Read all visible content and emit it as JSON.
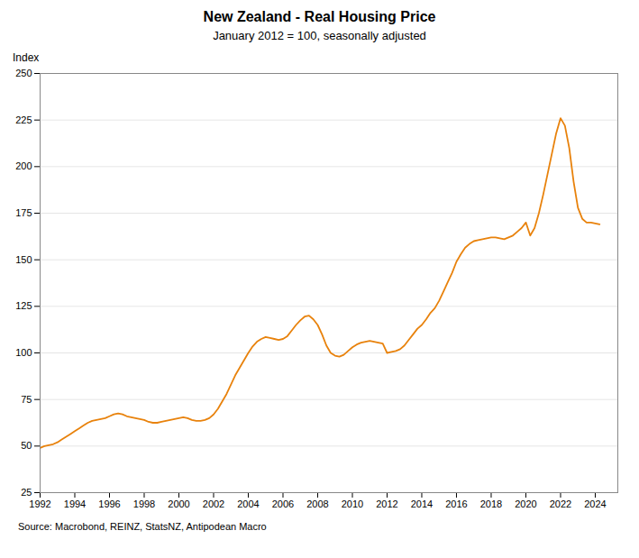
{
  "chart_data": {
    "type": "line",
    "title": "New Zealand - Real Housing Price",
    "subtitle": "January 2012 = 100, seasonally adjusted",
    "ylabel": "Index",
    "source": "Source: Macrobond, REINZ, StatsNZ, Antipodean Macro",
    "color": "#E8820C",
    "grid": true,
    "xlim": [
      1992,
      2025.3
    ],
    "xticks": [
      1992,
      1994,
      1996,
      1998,
      2000,
      2002,
      2004,
      2006,
      2008,
      2010,
      2012,
      2014,
      2016,
      2018,
      2020,
      2022,
      2024
    ],
    "ylim": [
      25,
      250
    ],
    "yticks": [
      25,
      50,
      75,
      100,
      125,
      150,
      175,
      200,
      225,
      250
    ],
    "x": [
      1992.0,
      1992.25,
      1992.5,
      1992.75,
      1993.0,
      1993.25,
      1993.5,
      1993.75,
      1994.0,
      1994.25,
      1994.5,
      1994.75,
      1995.0,
      1995.25,
      1995.5,
      1995.75,
      1996.0,
      1996.25,
      1996.5,
      1996.75,
      1997.0,
      1997.25,
      1997.5,
      1997.75,
      1998.0,
      1998.25,
      1998.5,
      1998.75,
      1999.0,
      1999.25,
      1999.5,
      1999.75,
      2000.0,
      2000.25,
      2000.5,
      2000.75,
      2001.0,
      2001.25,
      2001.5,
      2001.75,
      2002.0,
      2002.25,
      2002.5,
      2002.75,
      2003.0,
      2003.25,
      2003.5,
      2003.75,
      2004.0,
      2004.25,
      2004.5,
      2004.75,
      2005.0,
      2005.25,
      2005.5,
      2005.75,
      2006.0,
      2006.25,
      2006.5,
      2006.75,
      2007.0,
      2007.25,
      2007.5,
      2007.75,
      2008.0,
      2008.25,
      2008.5,
      2008.75,
      2009.0,
      2009.25,
      2009.5,
      2009.75,
      2010.0,
      2010.25,
      2010.5,
      2010.75,
      2011.0,
      2011.25,
      2011.5,
      2011.75,
      2012.0,
      2012.25,
      2012.5,
      2012.75,
      2013.0,
      2013.25,
      2013.5,
      2013.75,
      2014.0,
      2014.25,
      2014.5,
      2014.75,
      2015.0,
      2015.25,
      2015.5,
      2015.75,
      2016.0,
      2016.25,
      2016.5,
      2016.75,
      2017.0,
      2017.25,
      2017.5,
      2017.75,
      2018.0,
      2018.25,
      2018.5,
      2018.75,
      2019.0,
      2019.25,
      2019.5,
      2019.75,
      2020.0,
      2020.25,
      2020.5,
      2020.75,
      2021.0,
      2021.25,
      2021.5,
      2021.75,
      2022.0,
      2022.25,
      2022.5,
      2022.75,
      2023.0,
      2023.25,
      2023.5,
      2023.75,
      2024.0,
      2024.25
    ],
    "values": [
      49.0,
      50.0,
      50.5,
      51.0,
      52.0,
      53.5,
      55.0,
      56.5,
      58.0,
      59.5,
      61.0,
      62.5,
      63.5,
      64.0,
      64.5,
      65.0,
      66.0,
      67.0,
      67.5,
      67.0,
      66.0,
      65.5,
      65.0,
      64.5,
      64.0,
      63.0,
      62.5,
      62.5,
      63.0,
      63.5,
      64.0,
      64.5,
      65.0,
      65.5,
      65.0,
      64.0,
      63.5,
      63.5,
      64.0,
      65.0,
      67.0,
      70.0,
      74.0,
      78.0,
      83.0,
      88.0,
      92.0,
      96.0,
      100.0,
      103.5,
      106.0,
      107.5,
      108.5,
      108.0,
      107.5,
      107.0,
      107.5,
      109.0,
      112.0,
      115.0,
      117.5,
      119.5,
      120.0,
      118.0,
      115.0,
      110.0,
      104.0,
      100.0,
      98.5,
      98.0,
      99.0,
      101.0,
      103.0,
      104.5,
      105.5,
      106.0,
      106.5,
      106.0,
      105.5,
      105.0,
      100.0,
      100.5,
      101.0,
      102.0,
      104.0,
      107.0,
      110.0,
      113.0,
      115.0,
      118.0,
      121.5,
      124.0,
      128.0,
      133.0,
      138.0,
      143.0,
      149.0,
      153.0,
      156.5,
      158.5,
      160.0,
      160.5,
      161.0,
      161.5,
      162.0,
      162.0,
      161.5,
      161.0,
      162.0,
      163.0,
      165.0,
      167.0,
      170.0,
      163.0,
      167.0,
      175.0,
      185.0,
      196.0,
      207.0,
      218.0,
      226.0,
      222.0,
      210.0,
      192.0,
      178.0,
      172.0,
      170.0,
      170.0,
      169.5,
      169.0
    ]
  }
}
